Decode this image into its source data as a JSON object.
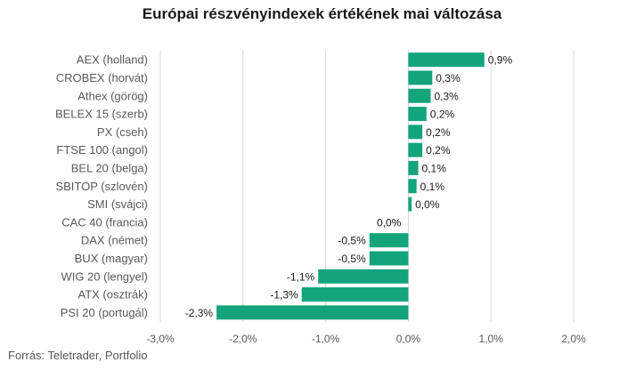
{
  "chart_data": {
    "type": "bar",
    "orientation": "horizontal",
    "title": "Európai részvényindexek értékének mai változása",
    "xlabel": "",
    "ylabel": "",
    "xlim": [
      -3.0,
      2.0
    ],
    "xticks": [
      -3.0,
      -2.0,
      -1.0,
      0.0,
      1.0,
      2.0
    ],
    "xtick_labels": [
      "-3,0%",
      "-2,0%",
      "-1,0%",
      "0,0%",
      "1,0%",
      "2,0%"
    ],
    "grid": "vertical",
    "legend": "none",
    "bar_color": "#13a47c",
    "categories": [
      "AEX (holland)",
      "CROBEX (horvát)",
      "Athex (görög)",
      "BELEX 15 (szerb)",
      "PX (cseh)",
      "FTSE 100 (angol)",
      "BEL 20 (belga)",
      "SBITOP (szlovén)",
      "SMI (svájci)",
      "CAC 40 (francia)",
      "DAX (német)",
      "BUX (magyar)",
      "WIG 20 (lengyel)",
      "ATX (osztrák)",
      "PSI 20 (portugál)"
    ],
    "values": [
      0.92,
      0.29,
      0.27,
      0.22,
      0.17,
      0.17,
      0.12,
      0.1,
      0.04,
      0.0,
      -0.47,
      -0.47,
      -1.09,
      -1.29,
      -2.32
    ],
    "value_labels": [
      "0,9%",
      "0,3%",
      "0,3%",
      "0,2%",
      "0,2%",
      "0,2%",
      "0,1%",
      "0,1%",
      "0,0%",
      "0,0%",
      "-0,5%",
      "-0,5%",
      "-1,1%",
      "-1,3%",
      "-2,3%"
    ]
  },
  "source": "Forrás: Teletrader, Portfolio"
}
